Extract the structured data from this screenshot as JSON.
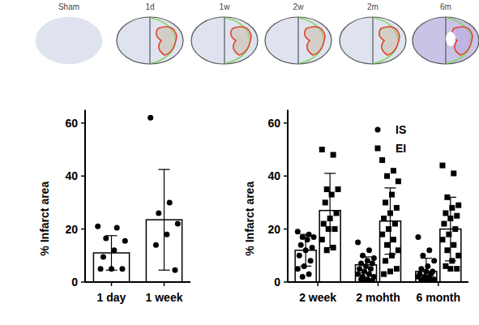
{
  "panels": {
    "labels": [
      "Sham",
      "1d",
      "1w",
      "2w",
      "2m",
      "6m"
    ]
  },
  "chart_data": [
    {
      "type": "bar",
      "y_label": "% Infarct area",
      "categories": [
        "1 day",
        "1 week"
      ],
      "values": [
        11,
        23.5
      ],
      "errors": [
        6.5,
        19
      ],
      "points": [
        [
          21,
          20.5,
          16.5,
          15.5,
          12,
          9.5,
          5,
          5,
          5
        ],
        [
          62,
          30,
          26,
          22,
          18,
          14,
          4.5
        ]
      ],
      "color": "#ffffff",
      "marker": "circle",
      "ylim": [
        0,
        65
      ],
      "yticks": [
        0,
        20,
        40,
        60
      ]
    },
    {
      "type": "bar",
      "y_label": "% Infarct area",
      "categories": [
        "2 week",
        "2 mohth",
        "6 month"
      ],
      "series": [
        {
          "name": "IS",
          "color": "#ffffff",
          "marker": "circle",
          "values": [
            12,
            6.5,
            4
          ],
          "errors": [
            6,
            3,
            5
          ],
          "points": [
            [
              19,
              18,
              17,
              17,
              16,
              14,
              13,
              12,
              10,
              8,
              6,
              5,
              3,
              2
            ],
            [
              15,
              12,
              10,
              9,
              8,
              7,
              7,
              6,
              5,
              5,
              4,
              3,
              3,
              2,
              2,
              1,
              1,
              0.5,
              0.5
            ],
            [
              17,
              12,
              10,
              8,
              6,
              5,
              4,
              4,
              3,
              3,
              2,
              2,
              2,
              1,
              1,
              1,
              0.5,
              0.5
            ]
          ]
        },
        {
          "name": "EI",
          "color": "#ffffff",
          "marker": "square",
          "values": [
            27,
            23,
            20
          ],
          "errors": [
            14,
            12.5,
            12
          ],
          "points": [
            [
              50,
              48,
              35,
              35,
              33,
              30,
              26,
              24,
              22,
              20,
              20,
              16,
              13,
              12
            ],
            [
              46,
              42,
              40,
              38,
              33,
              30,
              28,
              26,
              24,
              22,
              20,
              18,
              16,
              14,
              12,
              10,
              8,
              5,
              4,
              3
            ],
            [
              44,
              41,
              32,
              29,
              28,
              26,
              25,
              24,
              22,
              20,
              18,
              16,
              14,
              12,
              10,
              8,
              6,
              5,
              5
            ]
          ]
        }
      ],
      "legend": "top-right",
      "ylim": [
        0,
        65
      ],
      "yticks": [
        0,
        20,
        40,
        60
      ]
    }
  ]
}
